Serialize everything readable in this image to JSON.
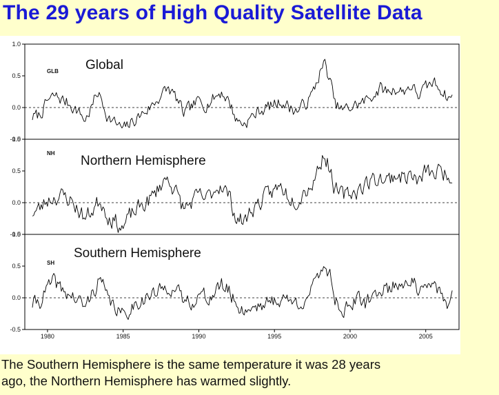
{
  "slide": {
    "title": "The 29 years of High Quality Satellite Data",
    "caption_line1": "The Southern Hemisphere is the same temperature it was 28 years",
    "caption_line2": "ago, the Northern Hemisphere has warmed slightly."
  },
  "colors": {
    "title": "#1a1ad6",
    "background": "#ffffcc",
    "line": "#000000"
  },
  "chart_data": [
    {
      "type": "line",
      "code": "GLB",
      "label": "Global",
      "ylim": [
        -0.5,
        1.0
      ],
      "yticks": [
        "1.0",
        "0.5",
        "0.0",
        "-0.5"
      ],
      "xlim": [
        1978.5,
        2007.2
      ],
      "baseline": 0.0,
      "anchors": [
        [
          1979.0,
          -0.15
        ],
        [
          1979.5,
          -0.12
        ],
        [
          1980.0,
          0.1
        ],
        [
          1980.5,
          0.18
        ],
        [
          1981.0,
          0.12
        ],
        [
          1981.5,
          0.05
        ],
        [
          1982.0,
          -0.05
        ],
        [
          1982.5,
          -0.2
        ],
        [
          1983.0,
          0.05
        ],
        [
          1983.3,
          0.25
        ],
        [
          1983.6,
          0.1
        ],
        [
          1984.0,
          -0.15
        ],
        [
          1984.5,
          -0.25
        ],
        [
          1985.0,
          -0.35
        ],
        [
          1985.5,
          -0.25
        ],
        [
          1986.0,
          -0.15
        ],
        [
          1986.5,
          -0.05
        ],
        [
          1987.0,
          0.05
        ],
        [
          1987.5,
          0.2
        ],
        [
          1988.0,
          0.3
        ],
        [
          1988.5,
          0.15
        ],
        [
          1989.0,
          -0.1
        ],
        [
          1989.5,
          0.0
        ],
        [
          1990.0,
          0.1
        ],
        [
          1990.5,
          0.05
        ],
        [
          1991.0,
          0.15
        ],
        [
          1991.5,
          0.25
        ],
        [
          1992.0,
          0.1
        ],
        [
          1992.5,
          -0.2
        ],
        [
          1993.0,
          -0.25
        ],
        [
          1993.5,
          -0.15
        ],
        [
          1994.0,
          -0.05
        ],
        [
          1994.5,
          0.0
        ],
        [
          1995.0,
          0.05
        ],
        [
          1995.5,
          0.1
        ],
        [
          1996.0,
          0.0
        ],
        [
          1996.5,
          -0.05
        ],
        [
          1997.0,
          0.05
        ],
        [
          1997.5,
          0.2
        ],
        [
          1998.0,
          0.55
        ],
        [
          1998.3,
          0.7
        ],
        [
          1998.7,
          0.4
        ],
        [
          1999.0,
          0.05
        ],
        [
          1999.5,
          -0.05
        ],
        [
          2000.0,
          0.0
        ],
        [
          2000.5,
          0.05
        ],
        [
          2001.0,
          0.1
        ],
        [
          2001.5,
          0.2
        ],
        [
          2002.0,
          0.3
        ],
        [
          2002.5,
          0.25
        ],
        [
          2003.0,
          0.3
        ],
        [
          2003.5,
          0.25
        ],
        [
          2004.0,
          0.35
        ],
        [
          2004.5,
          0.2
        ],
        [
          2005.0,
          0.3
        ],
        [
          2005.5,
          0.4
        ],
        [
          2006.0,
          0.3
        ],
        [
          2006.5,
          0.15
        ],
        [
          2006.8,
          0.2
        ]
      ],
      "seed": 7,
      "noise": 0.09
    },
    {
      "type": "line",
      "code": "NH",
      "label": "Northern Hemisphere",
      "ylim": [
        -0.5,
        1.0
      ],
      "yticks": [
        "1.0",
        "0.5",
        "0.0",
        "-0.5"
      ],
      "xlim": [
        1978.5,
        2007.2
      ],
      "baseline": 0.0,
      "anchors": [
        [
          1979.0,
          -0.15
        ],
        [
          1979.5,
          -0.1
        ],
        [
          1980.0,
          0.05
        ],
        [
          1980.5,
          0.1
        ],
        [
          1981.0,
          0.1
        ],
        [
          1981.5,
          0.05
        ],
        [
          1982.0,
          -0.1
        ],
        [
          1982.5,
          -0.25
        ],
        [
          1983.0,
          -0.1
        ],
        [
          1983.5,
          0.05
        ],
        [
          1984.0,
          -0.2
        ],
        [
          1984.5,
          -0.3
        ],
        [
          1985.0,
          -0.4
        ],
        [
          1985.5,
          -0.2
        ],
        [
          1986.0,
          -0.1
        ],
        [
          1986.5,
          0.0
        ],
        [
          1987.0,
          0.1
        ],
        [
          1987.5,
          0.3
        ],
        [
          1988.0,
          0.4
        ],
        [
          1988.5,
          0.15
        ],
        [
          1989.0,
          -0.1
        ],
        [
          1989.5,
          0.0
        ],
        [
          1990.0,
          0.1
        ],
        [
          1990.5,
          0.05
        ],
        [
          1991.0,
          0.2
        ],
        [
          1991.5,
          0.3
        ],
        [
          1992.0,
          0.1
        ],
        [
          1992.5,
          -0.25
        ],
        [
          1993.0,
          -0.3
        ],
        [
          1993.5,
          -0.1
        ],
        [
          1994.0,
          0.0
        ],
        [
          1994.5,
          0.1
        ],
        [
          1995.0,
          0.2
        ],
        [
          1995.5,
          0.25
        ],
        [
          1996.0,
          0.1
        ],
        [
          1996.5,
          0.05
        ],
        [
          1997.0,
          0.2
        ],
        [
          1997.5,
          0.3
        ],
        [
          1998.0,
          0.6
        ],
        [
          1998.3,
          0.8
        ],
        [
          1998.7,
          0.5
        ],
        [
          1999.0,
          0.2
        ],
        [
          1999.5,
          0.1
        ],
        [
          2000.0,
          0.15
        ],
        [
          2000.5,
          0.2
        ],
        [
          2001.0,
          0.3
        ],
        [
          2001.5,
          0.35
        ],
        [
          2002.0,
          0.4
        ],
        [
          2002.5,
          0.35
        ],
        [
          2003.0,
          0.45
        ],
        [
          2003.5,
          0.4
        ],
        [
          2004.0,
          0.45
        ],
        [
          2004.5,
          0.3
        ],
        [
          2005.0,
          0.5
        ],
        [
          2005.5,
          0.45
        ],
        [
          2006.0,
          0.5
        ],
        [
          2006.5,
          0.45
        ],
        [
          2006.8,
          0.45
        ]
      ],
      "seed": 23,
      "noise": 0.12
    },
    {
      "type": "line",
      "code": "SH",
      "label": "Southern Hemisphere",
      "ylim": [
        -0.5,
        1.0
      ],
      "yticks": [
        "1.0",
        "0.5",
        "0.0",
        "-0.5"
      ],
      "xlim": [
        1978.5,
        2007.2
      ],
      "baseline": 0.0,
      "xticks": [
        "1980",
        "1985",
        "1990",
        "1995",
        "2000",
        "2005"
      ],
      "xtick_values": [
        1980,
        1985,
        1990,
        1995,
        2000,
        2005
      ],
      "anchors": [
        [
          1979.0,
          -0.1
        ],
        [
          1979.5,
          -0.05
        ],
        [
          1980.0,
          0.15
        ],
        [
          1980.5,
          0.25
        ],
        [
          1981.0,
          0.1
        ],
        [
          1981.5,
          0.05
        ],
        [
          1982.0,
          -0.05
        ],
        [
          1982.5,
          -0.15
        ],
        [
          1983.0,
          0.1
        ],
        [
          1983.5,
          0.3
        ],
        [
          1984.0,
          -0.05
        ],
        [
          1984.5,
          -0.15
        ],
        [
          1985.0,
          -0.3
        ],
        [
          1985.5,
          -0.15
        ],
        [
          1986.0,
          -0.05
        ],
        [
          1986.5,
          0.0
        ],
        [
          1987.0,
          0.05
        ],
        [
          1987.5,
          0.1
        ],
        [
          1988.0,
          0.2
        ],
        [
          1988.5,
          0.1
        ],
        [
          1989.0,
          -0.05
        ],
        [
          1989.5,
          -0.05
        ],
        [
          1990.0,
          0.05
        ],
        [
          1990.5,
          0.0
        ],
        [
          1991.0,
          0.05
        ],
        [
          1991.5,
          0.2
        ],
        [
          1992.0,
          0.1
        ],
        [
          1992.5,
          -0.1
        ],
        [
          1993.0,
          -0.2
        ],
        [
          1993.5,
          -0.15
        ],
        [
          1994.0,
          -0.1
        ],
        [
          1994.5,
          -0.1
        ],
        [
          1995.0,
          -0.05
        ],
        [
          1995.5,
          0.0
        ],
        [
          1996.0,
          -0.05
        ],
        [
          1996.5,
          -0.1
        ],
        [
          1997.0,
          0.0
        ],
        [
          1997.5,
          0.1
        ],
        [
          1998.0,
          0.4
        ],
        [
          1998.3,
          0.55
        ],
        [
          1998.7,
          0.35
        ],
        [
          1999.0,
          0.0
        ],
        [
          1999.5,
          -0.2
        ],
        [
          2000.0,
          -0.1
        ],
        [
          2000.5,
          -0.05
        ],
        [
          2001.0,
          -0.1
        ],
        [
          2001.5,
          0.0
        ],
        [
          2002.0,
          0.15
        ],
        [
          2002.5,
          0.15
        ],
        [
          2003.0,
          0.2
        ],
        [
          2003.5,
          0.25
        ],
        [
          2004.0,
          0.3
        ],
        [
          2004.5,
          0.1
        ],
        [
          2005.0,
          0.1
        ],
        [
          2005.5,
          0.2
        ],
        [
          2006.0,
          0.1
        ],
        [
          2006.5,
          -0.2
        ],
        [
          2006.8,
          0.0
        ]
      ],
      "seed": 41,
      "noise": 0.11
    }
  ]
}
